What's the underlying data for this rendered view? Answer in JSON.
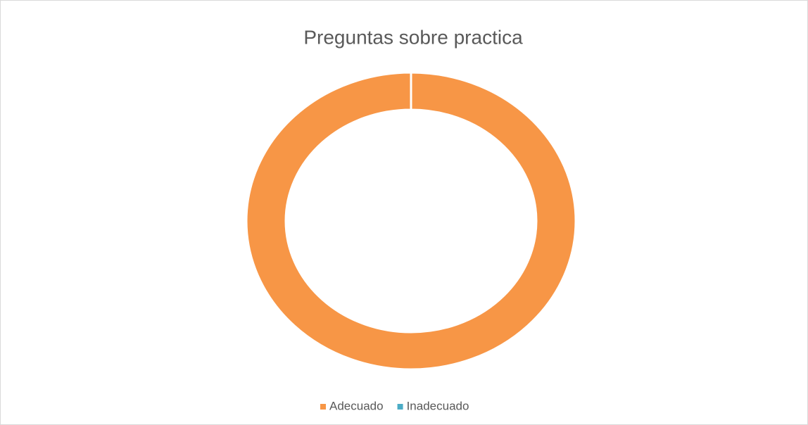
{
  "chart_data": {
    "type": "donut",
    "title": "Preguntas sobre practica",
    "categories": [
      "Adecuado",
      "Inadecuado"
    ],
    "values": [
      100,
      0
    ],
    "colors": [
      "#f79646",
      "#4bacc6"
    ],
    "legend": "bottom"
  }
}
